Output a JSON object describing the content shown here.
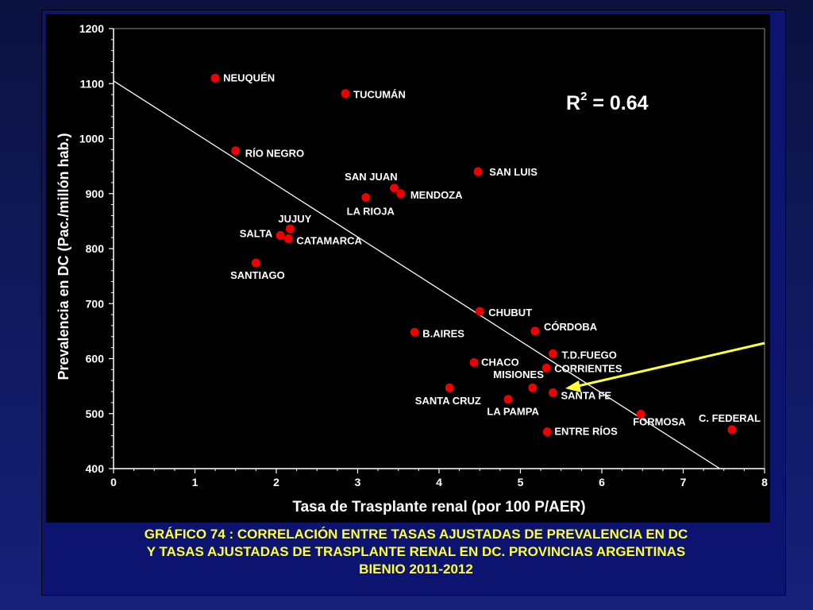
{
  "chart_data": {
    "type": "scatter",
    "xlabel": "Tasa de Trasplante renal (por 100 P/AER)",
    "ylabel": "Prevalencia en DC (Pac./millón hab.)",
    "xlim": [
      0,
      8
    ],
    "ylim": [
      400,
      1200
    ],
    "x_ticks": [
      "0",
      "1",
      "2",
      "3",
      "4",
      "5",
      "6",
      "7",
      "8"
    ],
    "y_ticks": [
      "400",
      "500",
      "600",
      "700",
      "800",
      "900",
      "1000",
      "1100",
      "1200"
    ],
    "r2_base": "R",
    "r2_exp": "2",
    "r2_value": " = 0.64",
    "point_color": "#ee0000",
    "trend_color": "#ffffff",
    "arrow_color": "#ffff33",
    "trendline": {
      "x": [
        0,
        7.45
      ],
      "y": [
        1105,
        400
      ]
    },
    "points": [
      {
        "label": "NEUQUÉN",
        "x": 1.25,
        "y": 1110
      },
      {
        "label": "TUCUMÁN",
        "x": 2.85,
        "y": 1082
      },
      {
        "label": "RÍO NEGRO",
        "x": 1.5,
        "y": 978
      },
      {
        "label": "SAN LUIS",
        "x": 4.48,
        "y": 940
      },
      {
        "label": "SAN JUAN",
        "x": 3.45,
        "y": 910
      },
      {
        "label": "MENDOZA",
        "x": 3.53,
        "y": 900
      },
      {
        "label": "LA RIOJA",
        "x": 3.1,
        "y": 893
      },
      {
        "label": "JUJUY",
        "x": 2.17,
        "y": 836
      },
      {
        "label": "SALTA",
        "x": 2.05,
        "y": 824
      },
      {
        "label": "CATAMARCA",
        "x": 2.15,
        "y": 818
      },
      {
        "label": "SANTIAGO",
        "x": 1.75,
        "y": 774
      },
      {
        "label": "CHUBUT",
        "x": 4.5,
        "y": 686
      },
      {
        "label": "B.AIRES",
        "x": 3.7,
        "y": 648
      },
      {
        "label": "CÓRDOBA",
        "x": 5.18,
        "y": 650
      },
      {
        "label": "T.D.FUEGO",
        "x": 5.4,
        "y": 609
      },
      {
        "label": "CHACO",
        "x": 4.43,
        "y": 593
      },
      {
        "label": "CORRIENTES",
        "x": 5.32,
        "y": 583
      },
      {
        "label": "MISIONES",
        "x": 5.15,
        "y": 547
      },
      {
        "label": "SANTA FE",
        "x": 5.4,
        "y": 538
      },
      {
        "label": "SANTA CRUZ",
        "x": 4.13,
        "y": 547
      },
      {
        "label": "LA PAMPA",
        "x": 4.85,
        "y": 526
      },
      {
        "label": "FORMOSA",
        "x": 6.48,
        "y": 499
      },
      {
        "label": "C. FEDERAL",
        "x": 7.6,
        "y": 471
      },
      {
        "label": "ENTRE RÍOS",
        "x": 5.33,
        "y": 467
      }
    ]
  },
  "caption": {
    "line1": "GRÁFICO 74 : CORRELACIÓN ENTRE TASAS AJUSTADAS DE PREVALENCIA EN DC",
    "line2": "Y TASAS AJUSTADAS DE TRASPLANTE RENAL EN DC.  PROVINCIAS ARGENTINAS",
    "line3": "BIENIO 2011-2012"
  }
}
